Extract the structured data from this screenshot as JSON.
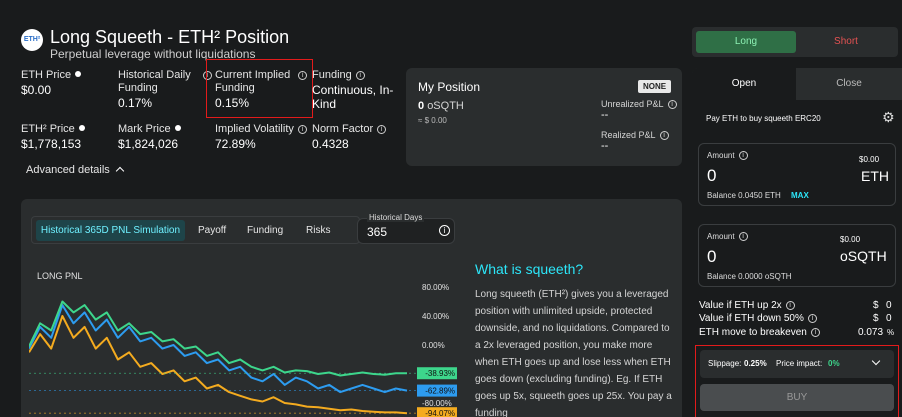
{
  "header": {
    "logo_text": "ETH²",
    "title": "Long Squeeth - ETH² Position",
    "subtitle": "Perpetual leverage without liquidations"
  },
  "stats": {
    "eth_price": {
      "label": "ETH Price",
      "value": "$0.00"
    },
    "hist_funding": {
      "label_1": "Historical Daily",
      "label_2": "Funding",
      "value": "0.17%"
    },
    "current_funding": {
      "label_1": "Current Implied",
      "label_2": "Funding",
      "value": "0.15%"
    },
    "funding": {
      "label": "Funding",
      "value_1": "Continuous, In-",
      "value_2": "Kind"
    },
    "eth2_price": {
      "label": "ETH² Price",
      "value": "$1,778,153"
    },
    "mark_price": {
      "label": "Mark Price",
      "value": "$1,824,026"
    },
    "implied_vol": {
      "label": "Implied Volatility",
      "value": "72.89%"
    },
    "norm_factor": {
      "label": "Norm Factor",
      "value": "0.4328"
    }
  },
  "advanced_details": "Advanced details",
  "position": {
    "title": "My Position",
    "badge": "NONE",
    "amount": "0",
    "unit": "oSQTH",
    "usd": "≈ $ 0.00",
    "unrealized_label": "Unrealized P&L",
    "unrealized_value": "--",
    "realized_label": "Realized P&L",
    "realized_value": "--"
  },
  "chart_panel": {
    "tabs": [
      "Historical 365D PNL Simulation",
      "Payoff",
      "Funding",
      "Risks"
    ],
    "days_label": "Historical Days",
    "days_value": "365",
    "chart_label": "LONG PNL",
    "heading": "What is squeeth?",
    "body": "Long squeeth (ETH²) gives you a leveraged position with unlimited upside, protected downside, and no liquidations. Compared to a 2x leveraged position, you make more when ETH goes up and lose less when ETH goes down (excluding funding). Eg. If ETH goes up 5x, squeeth goes up 25x. You pay a funding"
  },
  "chart_data": {
    "type": "line",
    "title": "LONG PNL",
    "y_ticks": [
      "80.00%",
      "40.00%",
      "0.00%",
      "-40.00%",
      "-80.00%"
    ],
    "ylim": [
      -100,
      100
    ],
    "series": [
      {
        "values": [
          -5,
          25,
          10,
          55,
          30,
          45,
          20,
          35,
          10,
          25,
          5,
          10,
          -5,
          0,
          -15,
          -10,
          -25,
          -20,
          -35,
          -30,
          -45,
          -50,
          -40,
          -55,
          -45,
          -50,
          -60,
          -55,
          -65,
          -60,
          -55,
          -60,
          -65,
          -60,
          -62.89
        ],
        "color": "#2d9cf0"
      },
      {
        "values": [
          -10,
          15,
          -5,
          40,
          10,
          25,
          -5,
          10,
          -20,
          -10,
          -30,
          -25,
          -40,
          -35,
          -50,
          -45,
          -60,
          -55,
          -65,
          -70,
          -75,
          -78,
          -72,
          -80,
          -82,
          -85,
          -86,
          -88,
          -90,
          -89,
          -91,
          -92,
          -93,
          -93,
          -94.07
        ],
        "color": "#f4ab1f"
      },
      {
        "values": [
          -2,
          30,
          20,
          60,
          45,
          55,
          35,
          45,
          20,
          30,
          15,
          18,
          5,
          8,
          -5,
          -2,
          -15,
          -10,
          -25,
          -20,
          -30,
          -35,
          -30,
          -38,
          -35,
          -36,
          -40,
          -38,
          -42,
          -40,
          -38,
          -40,
          -41,
          -39,
          -38.93
        ],
        "color": "#3dd68c"
      }
    ],
    "end_labels": [
      {
        "text": "-38.93%",
        "color": "#3dd68c"
      },
      {
        "text": "-62.89%",
        "color": "#2d9cf0"
      },
      {
        "text": "-94.07%",
        "color": "#f4ab1f"
      }
    ]
  },
  "trade": {
    "long_label": "Long",
    "short_label": "Short",
    "open_tab": "Open",
    "close_tab": "Close",
    "description": "Pay ETH to buy squeeth ERC20",
    "input1": {
      "label": "Amount",
      "value": "0",
      "usd": "$0.00",
      "unit": "ETH",
      "balance": "Balance 0.0450  ETH",
      "max": "MAX"
    },
    "input2": {
      "label": "Amount",
      "value": "0",
      "usd": "$0.00",
      "unit": "oSQTH",
      "balance": "Balance 0.0000  oSQTH"
    },
    "metrics": [
      {
        "label": "Value if ETH up 2x",
        "prefix": "$",
        "value": "0"
      },
      {
        "label": "Value if ETH down 50%",
        "prefix": "$",
        "value": "0"
      },
      {
        "label": "ETH move to breakeven",
        "prefix": "",
        "value": "0.073",
        "suffix": "%"
      }
    ],
    "slippage_label": "Slippage:",
    "slippage_value": "0.25%",
    "impact_label": "Price impact:",
    "impact_value": "0%",
    "buy_label": "BUY"
  },
  "colors": {
    "accent_green": "#3dd68c",
    "short_red": "#e35252",
    "highlight_red": "#e21b1b",
    "teal": "#2ce6f9"
  }
}
